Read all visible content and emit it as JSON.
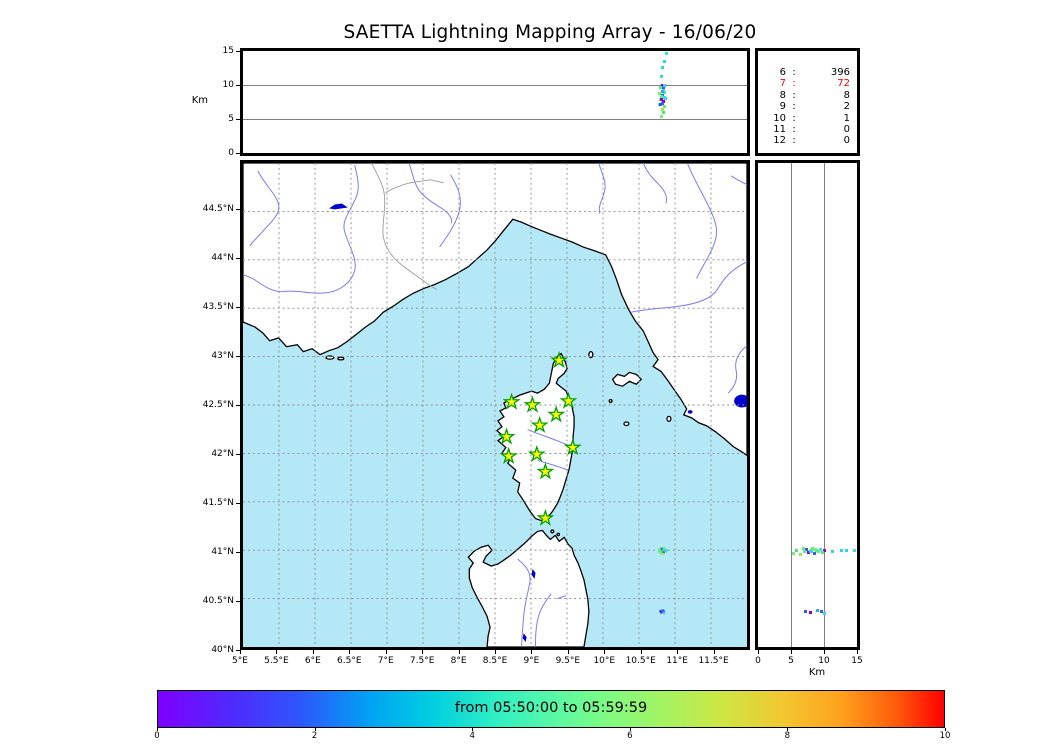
{
  "title": "SAETTA Lightning Mapping Array - 16/06/20",
  "axes": {
    "km_label": "Km",
    "lat_tick_labels": [
      [
        "44.5°N",
        44.5
      ],
      [
        "44°N",
        44
      ],
      [
        "43.5°N",
        43.5
      ],
      [
        "43°N",
        43
      ],
      [
        "42.5°N",
        42.5
      ],
      [
        "42°N",
        42
      ],
      [
        "41.5°N",
        41.5
      ],
      [
        "41°N",
        41
      ],
      [
        "40.5°N",
        40.5
      ],
      [
        "40°N",
        40
      ]
    ],
    "lon_tick_labels": [
      [
        "5°E",
        5
      ],
      [
        "5.5°E",
        5.5
      ],
      [
        "6°E",
        6
      ],
      [
        "6.5°E",
        6.5
      ],
      [
        "7°E",
        7
      ],
      [
        "7.5°E",
        7.5
      ],
      [
        "8°E",
        8
      ],
      [
        "8.5°E",
        8.5
      ],
      [
        "9°E",
        9
      ],
      [
        "9.5°E",
        9.5
      ],
      [
        "10°E",
        10
      ],
      [
        "10.5°E",
        10.5
      ],
      [
        "11°E",
        11
      ],
      [
        "11.5°E",
        11.5
      ]
    ],
    "top_alt_labels": [
      [
        "15",
        15
      ],
      [
        "10",
        10
      ],
      [
        "5",
        5
      ],
      [
        "0",
        0
      ]
    ],
    "right_alt_labels": [
      [
        "0",
        0
      ],
      [
        "5",
        5
      ],
      [
        "10",
        10
      ],
      [
        "15",
        15
      ]
    ]
  },
  "station_stats": [
    {
      "station": "6",
      "count": "396",
      "color": "#000000"
    },
    {
      "station": "7",
      "count": "72",
      "color": "#ff0000"
    },
    {
      "station": "8",
      "count": "8",
      "color": "#000000"
    },
    {
      "station": "9",
      "count": "2",
      "color": "#000000"
    },
    {
      "station": "10",
      "count": "1",
      "color": "#000000"
    },
    {
      "station": "11",
      "count": "0",
      "color": "#000000"
    },
    {
      "station": "12",
      "count": "0",
      "color": "#000000"
    }
  ],
  "colorbar": {
    "label": "from 05:50:00 to 05:59:59",
    "ticks": [
      "0",
      "2",
      "4",
      "6",
      "8",
      "10"
    ],
    "range": [
      0,
      10
    ],
    "colormap": "rainbow"
  },
  "colors": {
    "sea": "#b5e8f6",
    "land": "#ffffff",
    "coast": "#000000",
    "river": "#7b7bf5",
    "border": "#9a9a9a",
    "lake": "#0000cc",
    "grid_map": "#8a8a8a",
    "grid_panel": "#808080",
    "star_fill": "#ffff00",
    "star_edge": "#00a000",
    "highlight": "#ff0000"
  },
  "chart_data": {
    "type": "scatter",
    "title": "SAETTA Lightning Mapping Array - 16/06/20",
    "panels": [
      {
        "id": "altitude_vs_longitude",
        "type": "scatter",
        "position": "top",
        "ylabel": "Km",
        "xlim": [
          5,
          12
        ],
        "ylim": [
          0,
          15
        ],
        "yticks": [
          0,
          5,
          10,
          15
        ],
        "grid": "solid horizontal lines at 5 and 10 km"
      },
      {
        "id": "station_source_counts",
        "type": "table",
        "position": "top-right",
        "rows": [
          [
            "6",
            396
          ],
          [
            "7",
            72
          ],
          [
            "8",
            8
          ],
          [
            "9",
            2
          ],
          [
            "10",
            1
          ],
          [
            "11",
            0
          ],
          [
            "12",
            0
          ]
        ],
        "highlighted_row": "7"
      },
      {
        "id": "map_plan_view",
        "type": "scatter",
        "position": "main",
        "xlim": [
          5,
          12
        ],
        "ylim": [
          40,
          45
        ],
        "xtick_step_deg": 0.5,
        "ytick_step_deg": 0.5,
        "grid": "dashed gray every 0.5 degree"
      },
      {
        "id": "altitude_vs_latitude",
        "type": "scatter",
        "position": "right",
        "xlabel": "Km",
        "xlim": [
          0,
          15
        ],
        "ylim": [
          40,
          45
        ],
        "xticks": [
          0,
          5,
          10,
          15
        ],
        "grid": "solid vertical lines at 5 and 10 km"
      }
    ],
    "lma_stations_lonlat": [
      [
        9.39,
        42.96
      ],
      [
        8.73,
        42.53
      ],
      [
        9.02,
        42.5
      ],
      [
        9.52,
        42.54
      ],
      [
        9.35,
        42.4
      ],
      [
        9.12,
        42.29
      ],
      [
        8.66,
        42.17
      ],
      [
        9.58,
        42.06
      ],
      [
        8.69,
        41.97
      ],
      [
        9.08,
        41.99
      ],
      [
        9.2,
        41.81
      ],
      [
        9.2,
        41.33
      ]
    ],
    "lightning_sources": [
      {
        "lon": 10.82,
        "lat": 41.0,
        "alt_km": 12.6,
        "color": "#2fd8df"
      },
      {
        "lon": 10.81,
        "lat": 40.99,
        "alt_km": 11.3,
        "color": "#33dfc9"
      },
      {
        "lon": 10.83,
        "lat": 41.0,
        "alt_km": 10.0,
        "color": "#9000d8"
      },
      {
        "lon": 10.8,
        "lat": 40.98,
        "alt_km": 9.7,
        "color": "#57e87d"
      },
      {
        "lon": 10.84,
        "lat": 41.01,
        "alt_km": 9.4,
        "color": "#38dff0"
      },
      {
        "lon": 10.82,
        "lat": 40.99,
        "alt_km": 9.1,
        "color": "#6ef069"
      },
      {
        "lon": 10.85,
        "lat": 41.0,
        "alt_km": 8.9,
        "color": "#47e8b2"
      },
      {
        "lon": 10.79,
        "lat": 41.01,
        "alt_km": 8.7,
        "color": "#79f25b"
      },
      {
        "lon": 10.83,
        "lat": 40.97,
        "alt_km": 8.5,
        "color": "#2f64f1"
      },
      {
        "lon": 10.81,
        "lat": 41.02,
        "alt_km": 8.3,
        "color": "#5ceb8e"
      },
      {
        "lon": 10.86,
        "lat": 40.99,
        "alt_km": 8.1,
        "color": "#40e4c3"
      },
      {
        "lon": 10.8,
        "lat": 41.0,
        "alt_km": 7.9,
        "color": "#88f056"
      },
      {
        "lon": 10.84,
        "lat": 40.98,
        "alt_km": 7.6,
        "color": "#8a00dd"
      },
      {
        "lon": 10.82,
        "lat": 41.01,
        "alt_km": 7.3,
        "color": "#3b57ee"
      },
      {
        "lon": 10.78,
        "lat": 40.99,
        "alt_km": 7.1,
        "color": "#52e9a3"
      },
      {
        "lon": 10.85,
        "lat": 41.02,
        "alt_km": 6.9,
        "color": "#6ceb77"
      },
      {
        "lon": 10.83,
        "lat": 40.96,
        "alt_km": 6.4,
        "color": "#95f04e"
      },
      {
        "lon": 10.81,
        "lat": 40.97,
        "alt_km": 5.4,
        "color": "#70ee6d"
      },
      {
        "lon": 10.86,
        "lat": 41.0,
        "alt_km": 13.4,
        "color": "#2fd8e8"
      },
      {
        "lon": 10.88,
        "lat": 41.0,
        "alt_km": 14.6,
        "color": "#38dce2"
      },
      {
        "lon": 10.84,
        "lat": 41.0,
        "alt_km": 5.9,
        "color": "#49e87d"
      },
      {
        "lon": 10.87,
        "lat": 40.99,
        "alt_km": 8.0,
        "color": "#36d2ef"
      },
      {
        "lon": 10.8,
        "lat": 40.37,
        "alt_km": 7.2,
        "color": "#3552ea"
      },
      {
        "lon": 10.81,
        "lat": 40.36,
        "alt_km": 7.9,
        "color": "#8a00d8"
      },
      {
        "lon": 10.83,
        "lat": 40.38,
        "alt_km": 9.0,
        "color": "#2fa9ef"
      },
      {
        "lon": 10.84,
        "lat": 40.37,
        "alt_km": 9.6,
        "color": "#3a5aee"
      },
      {
        "lon": 10.85,
        "lat": 40.35,
        "alt_km": 10.0,
        "color": "#38d8e8"
      }
    ],
    "colorbar": {
      "label": "from 05:50:00 to 05:59:59",
      "range": [
        0,
        10
      ],
      "ticks": [
        0,
        2,
        4,
        6,
        8,
        10
      ],
      "colormap": "rainbow"
    }
  }
}
